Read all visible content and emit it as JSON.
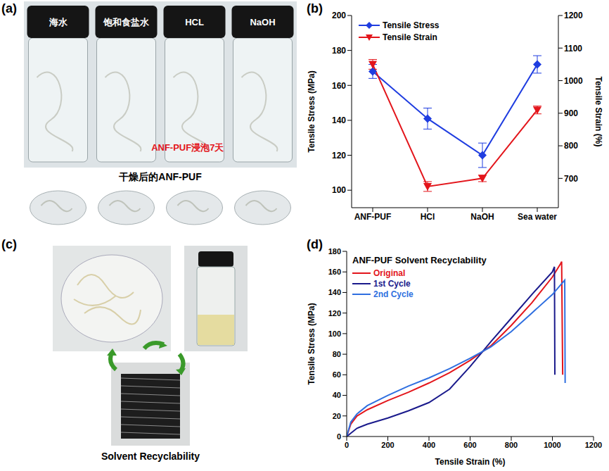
{
  "panels": [
    {
      "letter": "(a)",
      "type": "photo",
      "labels": [
        "海水",
        "饱和食盐水",
        "HCL",
        "NaOH"
      ],
      "annotation": "ANF-PUF浸泡7天",
      "caption": "干燥后的ANF-PUF"
    },
    {
      "letter": "(c)",
      "type": "photo",
      "caption": "Solvent Recyclability"
    }
  ],
  "chart_data": [
    {
      "panel": "(b)",
      "type": "line",
      "categories": [
        "ANF-PUF",
        "HCl",
        "NaOH",
        "Sea water"
      ],
      "y_label": "Tensile Stress (MPa)",
      "y2_label": "Tensile Strain (%)",
      "ylim": [
        90,
        200
      ],
      "yticks": [
        100,
        120,
        140,
        160,
        180,
        200
      ],
      "y2lim": [
        610,
        1200
      ],
      "y2ticks": [
        700,
        800,
        900,
        1000,
        1100,
        1200
      ],
      "legend": "upper left",
      "series": [
        {
          "name": "Tensile Stress",
          "color": "#1f3de0",
          "marker": "diamond",
          "values": [
            168,
            141,
            120,
            172
          ],
          "errors": [
            4,
            6,
            7,
            5
          ]
        },
        {
          "name": "Tensile Strain",
          "color": "#e3151b",
          "marker": "triangle-down",
          "axis": "y2",
          "values": [
            1050,
            675,
            700,
            910
          ],
          "errors": [
            15,
            15,
            10,
            12
          ]
        }
      ]
    },
    {
      "panel": "(d)",
      "type": "line",
      "title": "ANF-PUF Solvent Recyclability",
      "x_label": "Tensile Strain (%)",
      "y_label": "Tensile Stress (MPa)",
      "xlim": [
        0,
        1200
      ],
      "xticks": [
        0,
        200,
        400,
        600,
        800,
        1000,
        1200
      ],
      "ylim": [
        0,
        180
      ],
      "yticks": [
        0,
        20,
        40,
        60,
        80,
        100,
        120,
        140,
        160,
        180
      ],
      "legend": "upper left",
      "series": [
        {
          "name": "Original",
          "color": "#e3151b",
          "x": [
            0,
            20,
            50,
            100,
            200,
            300,
            400,
            500,
            600,
            700,
            800,
            900,
            1000,
            1040,
            1045,
            1050
          ],
          "values": [
            0,
            12,
            20,
            26,
            35,
            43,
            52,
            62,
            74,
            88,
            108,
            130,
            155,
            168,
            170,
            60
          ]
        },
        {
          "name": "1st Cycle",
          "color": "#1a1a8c",
          "x": [
            0,
            50,
            100,
            200,
            300,
            400,
            500,
            600,
            700,
            800,
            900,
            1000,
            1010,
            1012
          ],
          "values": [
            0,
            8,
            12,
            18,
            25,
            33,
            46,
            68,
            92,
            115,
            138,
            160,
            165,
            60
          ]
        },
        {
          "name": "2nd Cycle",
          "color": "#2f6fe0",
          "x": [
            0,
            20,
            50,
            100,
            200,
            300,
            400,
            500,
            600,
            700,
            800,
            900,
            1000,
            1060,
            1062
          ],
          "values": [
            0,
            14,
            22,
            30,
            40,
            49,
            57,
            66,
            76,
            87,
            102,
            120,
            138,
            152,
            52
          ]
        }
      ]
    }
  ]
}
